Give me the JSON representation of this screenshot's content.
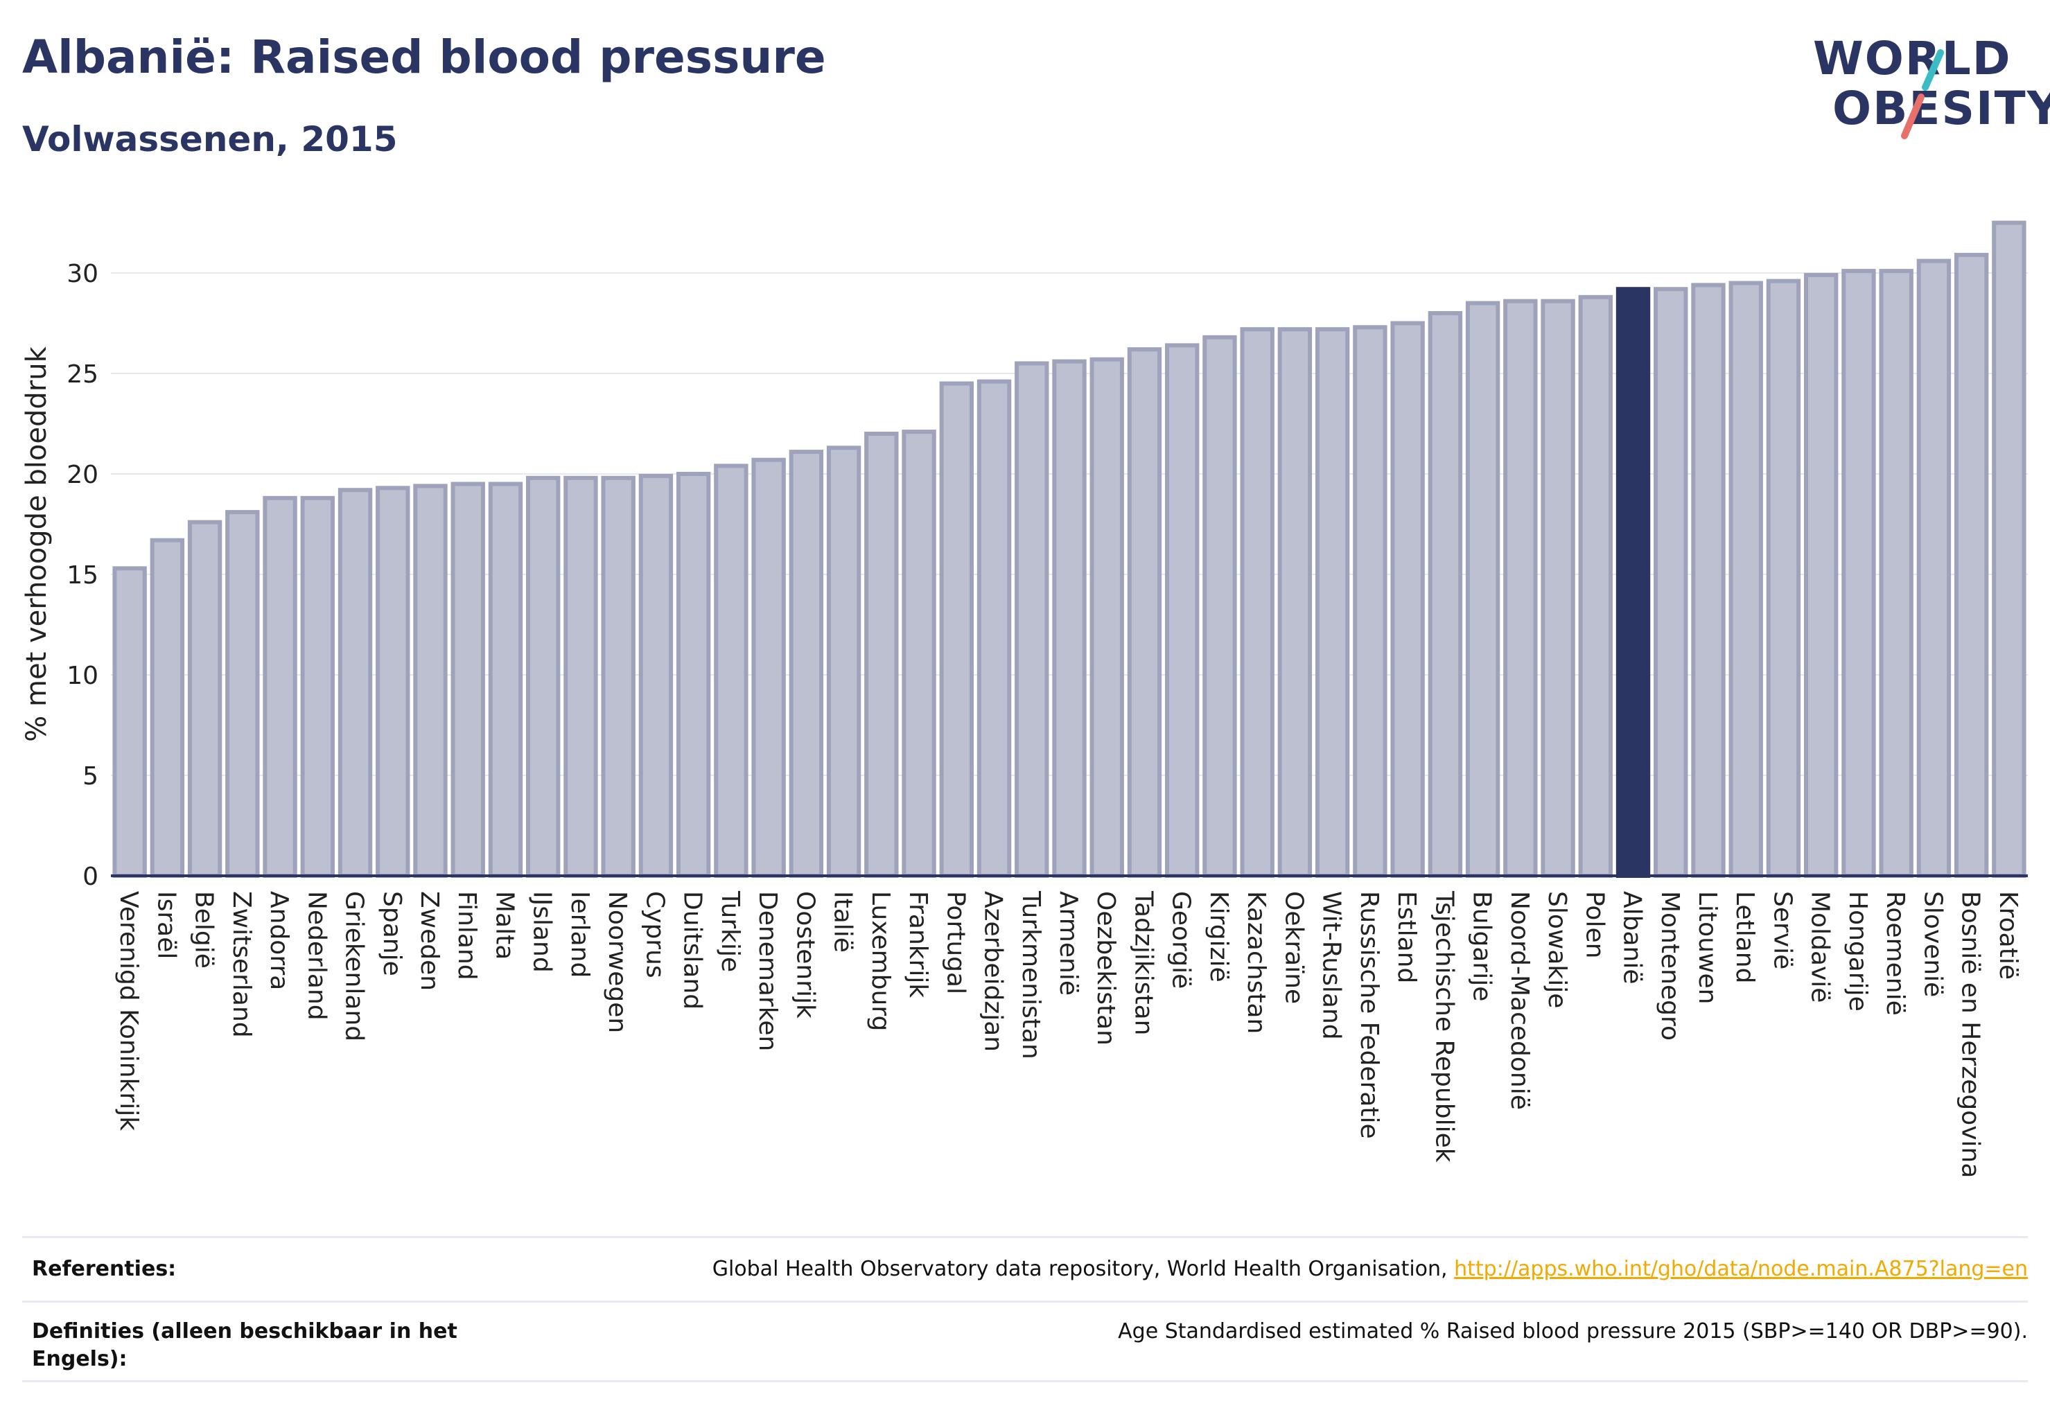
{
  "header": {
    "title": "Albanië: Raised blood pressure",
    "subtitle": "Volwassenen, 2015"
  },
  "logo": {
    "line1": "WORLD",
    "line2": "OBESITY"
  },
  "colors": {
    "highlight": "#2a3563",
    "bar_fill": "#bcc0d0",
    "bar_stroke": "#9ea3bb",
    "grid": "#e6e8ef",
    "text": "#2a3563"
  },
  "chart_data": {
    "type": "bar",
    "ylabel": "% met verhoogde bloeddruk",
    "xlabel": "",
    "ylim": [
      0,
      33
    ],
    "yticks": [
      0,
      5,
      10,
      15,
      20,
      25,
      30
    ],
    "highlight": "Albanië",
    "categories": [
      "Verenigd Koninkrijk",
      "Israël",
      "België",
      "Zwitserland",
      "Andorra",
      "Nederland",
      "Griekenland",
      "Spanje",
      "Zweden",
      "Finland",
      "Malta",
      "IJsland",
      "Ierland",
      "Noorwegen",
      "Cyprus",
      "Duitsland",
      "Turkije",
      "Denemarken",
      "Oostenrijk",
      "Italië",
      "Luxemburg",
      "Frankrijk",
      "Portugal",
      "Azerbeidzjan",
      "Turkmenistan",
      "Armenië",
      "Oezbekistan",
      "Tadzjikistan",
      "Georgië",
      "Kirgizië",
      "Kazachstan",
      "Oekraïne",
      "Wit-Rusland",
      "Russische Federatie",
      "Estland",
      "Tsjechische Republiek",
      "Bulgarije",
      "Noord-Macedonië",
      "Slowakije",
      "Polen",
      "Albanië",
      "Montenegro",
      "Litouwen",
      "Letland",
      "Servië",
      "Moldavië",
      "Hongarije",
      "Roemenië",
      "Slovenië",
      "Bosnië en Herzegovina",
      "Kroatië"
    ],
    "values": [
      15.3,
      16.7,
      17.6,
      18.1,
      18.8,
      18.8,
      19.2,
      19.3,
      19.4,
      19.5,
      19.5,
      19.8,
      19.8,
      19.8,
      19.9,
      20.0,
      20.4,
      20.7,
      21.1,
      21.3,
      22.0,
      22.1,
      24.5,
      24.6,
      25.5,
      25.6,
      25.7,
      26.2,
      26.4,
      26.8,
      27.2,
      27.2,
      27.2,
      27.3,
      27.5,
      28.0,
      28.5,
      28.6,
      28.6,
      28.8,
      29.2,
      29.2,
      29.4,
      29.5,
      29.6,
      29.9,
      30.1,
      30.1,
      30.6,
      30.9,
      32.5
    ]
  },
  "footer": {
    "references_label": "Referenties:",
    "references_text": "Global Health Observatory data repository, World Health Organisation,",
    "references_link": "http://apps.who.int/gho/data/node.main.A875?lang=en",
    "definitions_label": "Definities (alleen beschikbaar in het Engels):",
    "definitions_text": "Age Standardised estimated % Raised blood pressure 2015 (SBP>=140 OR DBP>=90)."
  }
}
